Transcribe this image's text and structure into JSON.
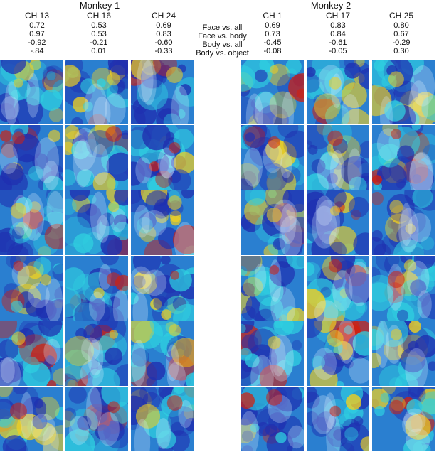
{
  "monkeys": [
    {
      "title": "Monkey 1",
      "channels": [
        {
          "label": "CH 13",
          "values": [
            "0.72",
            "0.97",
            "-0.92",
            "-.84"
          ]
        },
        {
          "label": "CH 16",
          "values": [
            "0.53",
            "0.53",
            "-0.21",
            "0.01"
          ]
        },
        {
          "label": "CH 24",
          "values": [
            "0.69",
            "0.83",
            "-0.60",
            "-0.33"
          ]
        }
      ]
    },
    {
      "title": "Monkey 2",
      "channels": [
        {
          "label": "CH 1",
          "values": [
            "0.69",
            "0.73",
            "-0.45",
            "-0.08"
          ]
        },
        {
          "label": "CH 17",
          "values": [
            "0.83",
            "0.84",
            "-0.61",
            "-0.05"
          ]
        },
        {
          "label": "CH 25",
          "values": [
            "0.80",
            "0.67",
            "-0.29",
            "0.30"
          ]
        }
      ]
    }
  ],
  "metrics": [
    "Face vs. all",
    "Face vs. body",
    "Body vs. all",
    "Body vs. object"
  ],
  "colors": {
    "heat_low": "#1f2fb0",
    "heat_mid": "#2fd0e0",
    "heat_high": "#f0d020",
    "heat_peak": "#d02010"
  }
}
